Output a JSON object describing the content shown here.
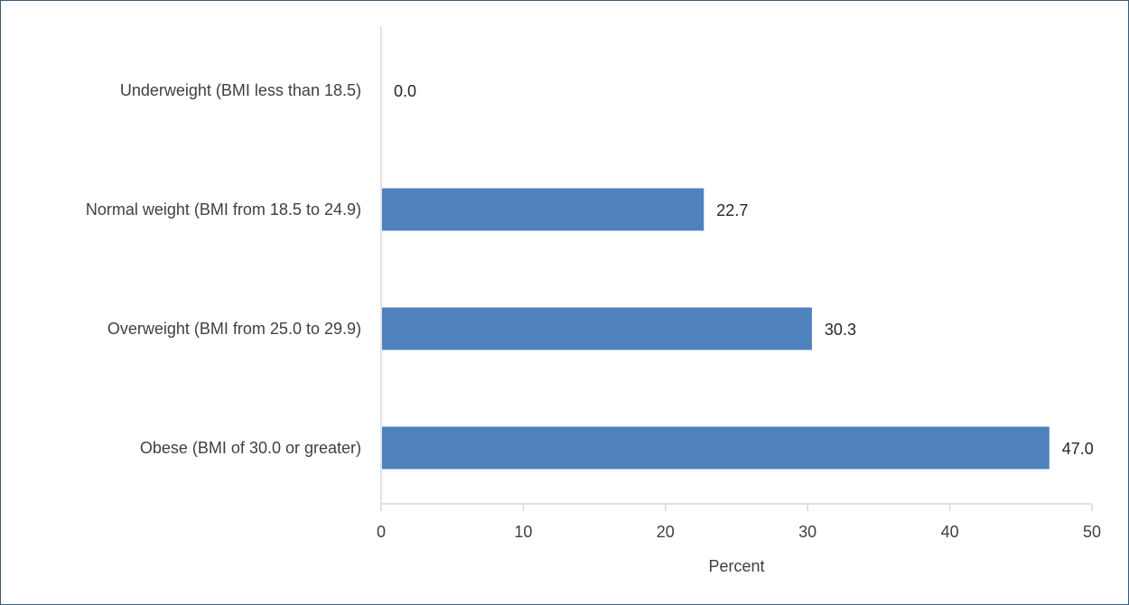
{
  "chart_data": {
    "type": "bar",
    "orientation": "horizontal",
    "categories": [
      "Underweight (BMI less than 18.5)",
      "Normal weight (BMI from 18.5 to 24.9)",
      "Overweight (BMI from 25.0 to 29.9)",
      "Obese (BMI of 30.0 or greater)"
    ],
    "values": [
      0.0,
      22.7,
      30.3,
      47.0
    ],
    "data_labels": [
      "0.0",
      "22.7",
      "30.3",
      "47.0"
    ],
    "title": "",
    "xlabel": "Percent",
    "ylabel": "",
    "xlim": [
      0,
      50
    ],
    "xticks": [
      0,
      10,
      20,
      30,
      40,
      50
    ],
    "grid": false,
    "legend": "none",
    "bar_color": "#4f81bd",
    "axis_color": "#d9d9d9"
  }
}
